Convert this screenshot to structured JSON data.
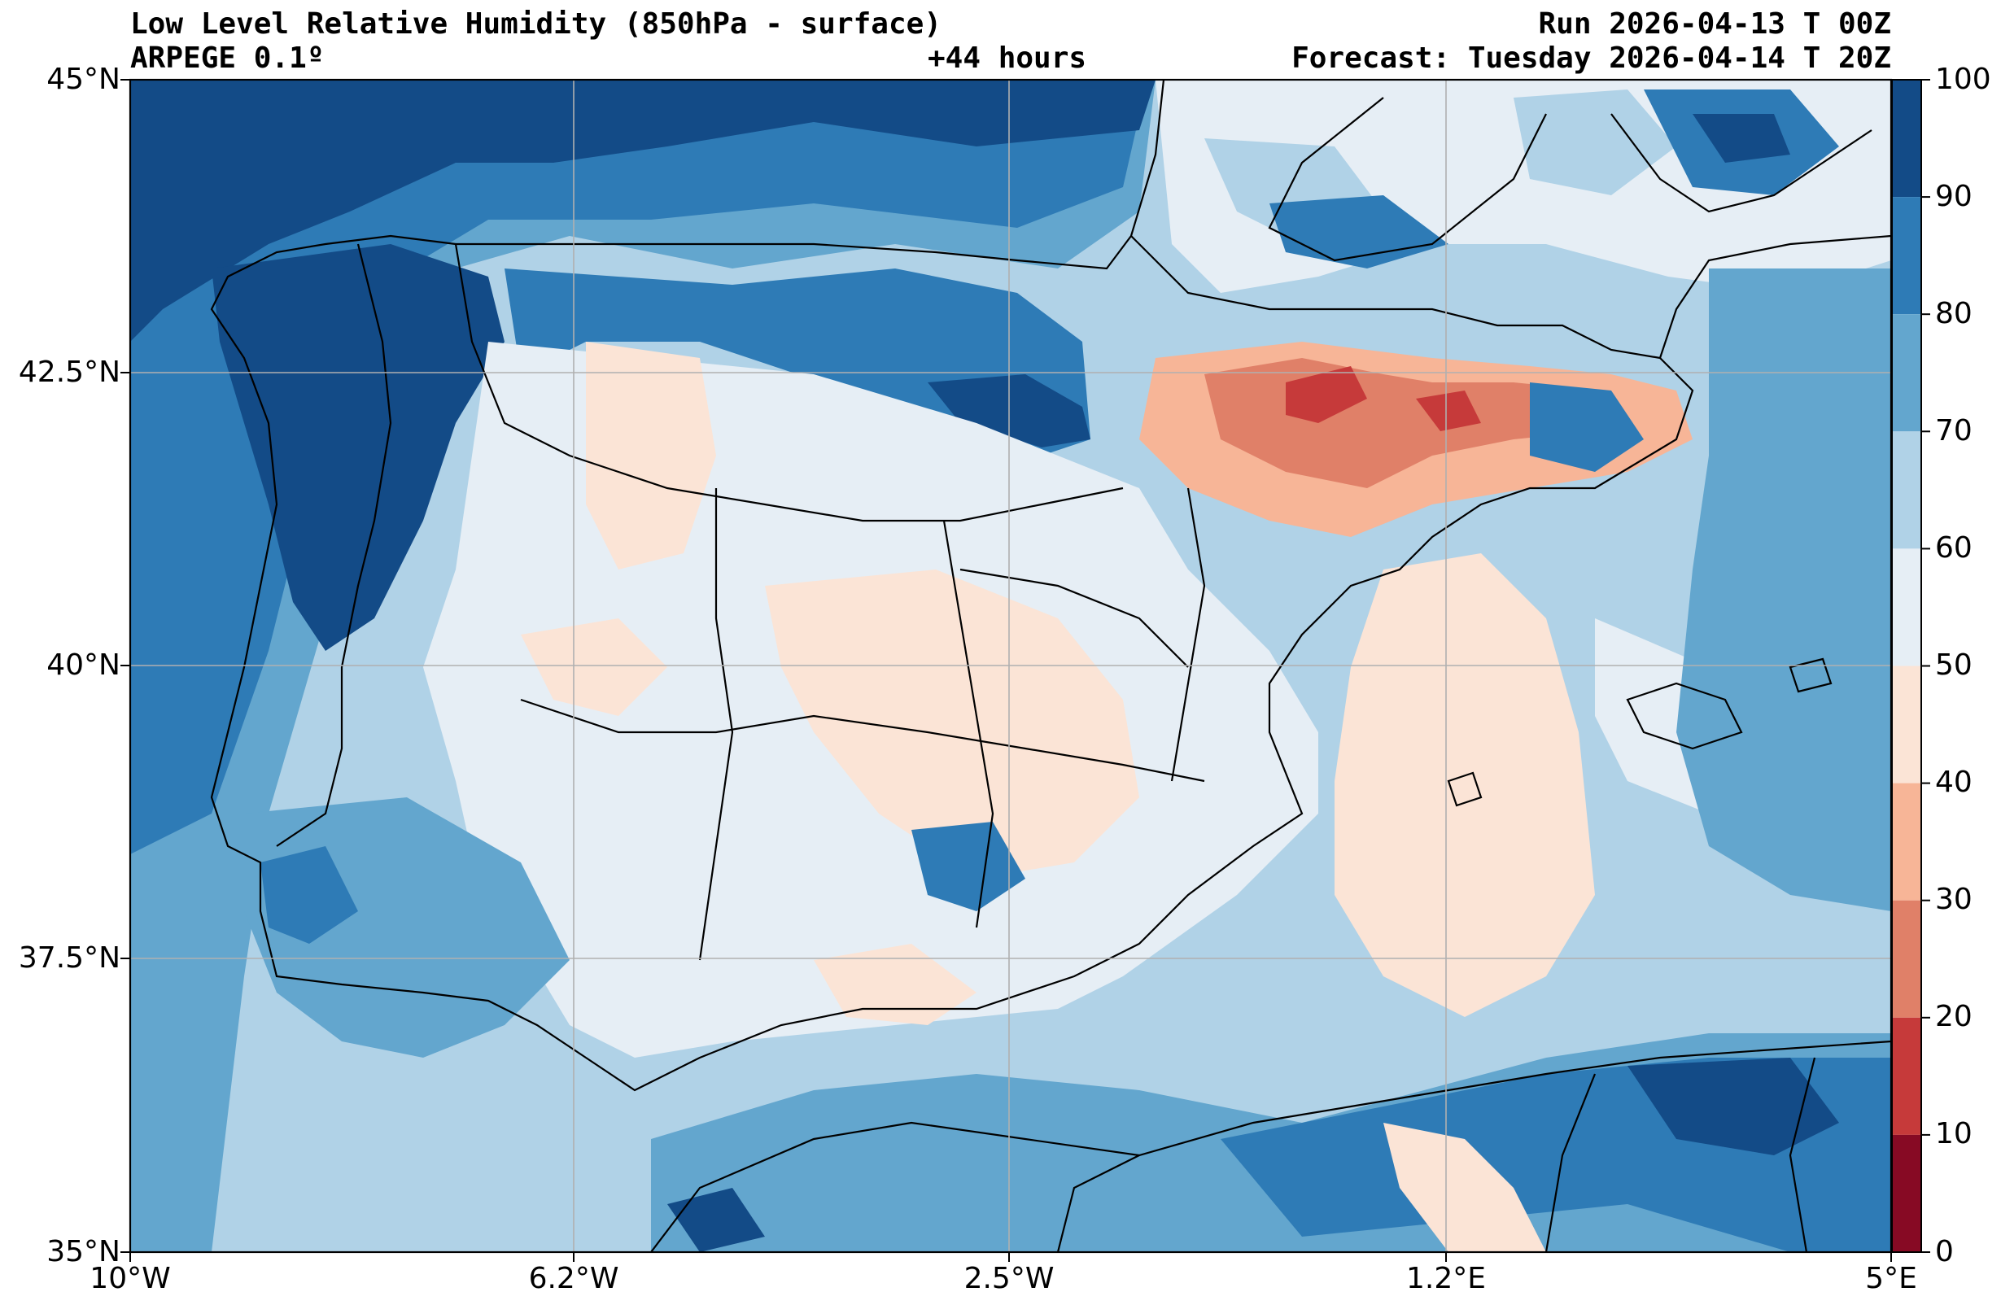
{
  "header": {
    "title": "Low Level Relative Humidity (850hPa - surface)",
    "model": "ARPEGE 0.1º",
    "lead": "+44 hours",
    "run": "Run 2026-04-13 T 00Z",
    "forecast": "Forecast: Tuesday 2026-04-14 T 20Z"
  },
  "axes": {
    "lat_labels": [
      "45°N",
      "42.5°N",
      "40°N",
      "37.5°N",
      "35°N"
    ],
    "lon_labels": [
      "10°W",
      "6.2°W",
      "2.5°W",
      "1.2°E",
      "5°E"
    ]
  },
  "colorbar": {
    "levels": [
      "100",
      "90",
      "80",
      "70",
      "60",
      "50",
      "40",
      "30",
      "20",
      "10",
      "0"
    ],
    "colors": [
      "#134b87",
      "#2e7bb6",
      "#63a6ce",
      "#b0d2e7",
      "#e6eef5",
      "#fbe4d6",
      "#f7b597",
      "#e08068",
      "#c63a3a",
      "#870a24"
    ]
  },
  "palette": {
    "rh90": "#134b87",
    "rh80": "#2e7bb6",
    "rh70": "#63a6ce",
    "rh60": "#b0d2e7",
    "rh50": "#e6eef5",
    "rh40": "#fbe4d6",
    "rh30": "#f7b597",
    "rh20": "#e08068",
    "rh10": "#c63a3a"
  }
}
